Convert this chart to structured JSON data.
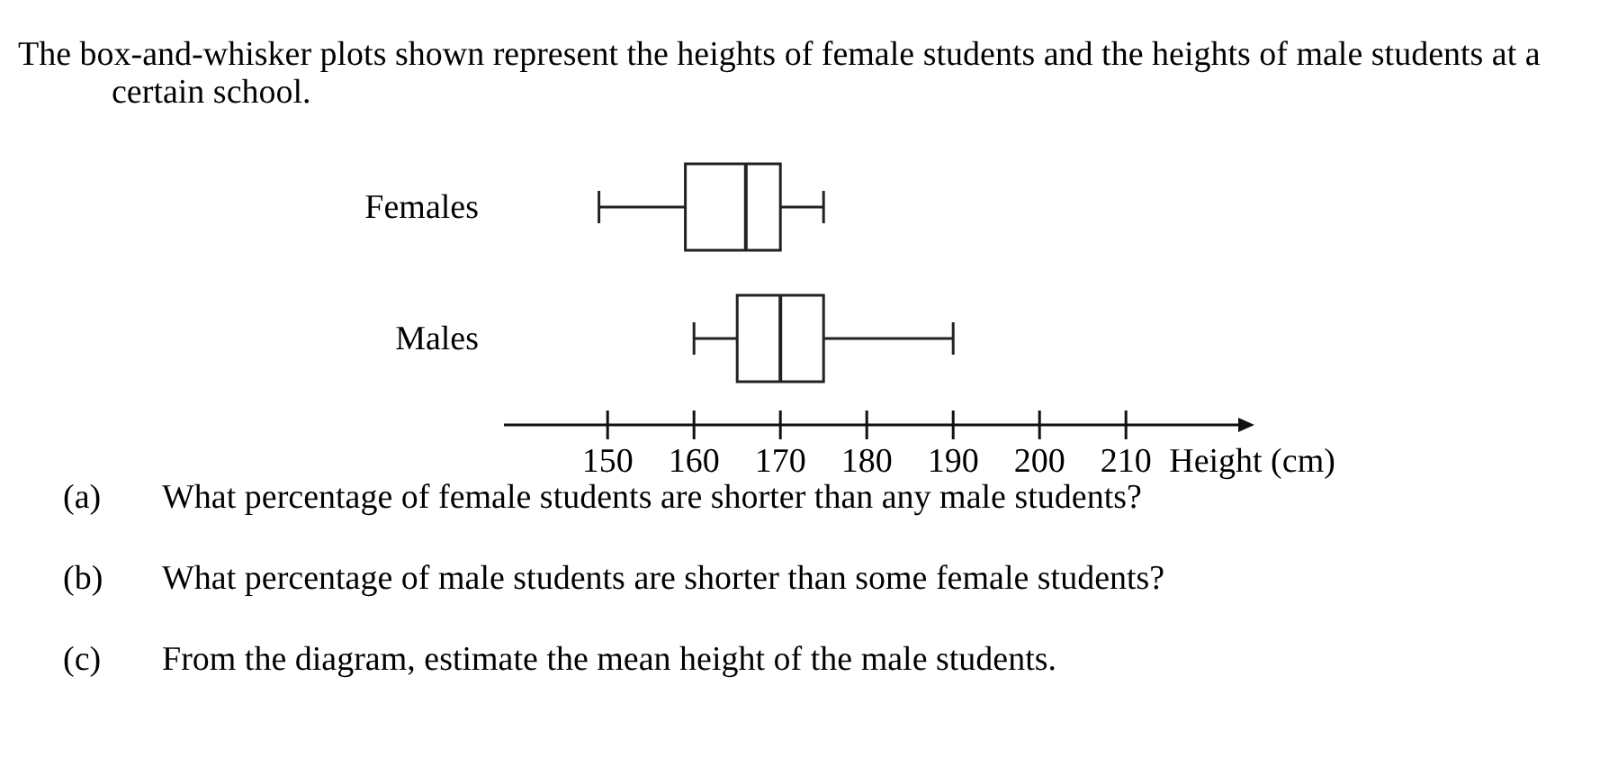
{
  "chart_data": {
    "type": "box",
    "orientation": "horizontal",
    "title": "The box-and-whisker plots shown represent the heights of female students and the heights of male students at a certain school.",
    "categories": [
      "Females",
      "Males"
    ],
    "boxes": [
      {
        "low": 149,
        "q1": 159,
        "median": 166,
        "q3": 170,
        "high": 175
      },
      {
        "low": 160,
        "q1": 165,
        "median": 170,
        "q3": 175,
        "high": 190
      }
    ],
    "xlim": [
      138,
      223
    ],
    "xticks": [
      150,
      160,
      170,
      180,
      190,
      200,
      210
    ],
    "xlabel": "Height (cm)",
    "annotations": [
      "(a)\tWhat percentage of female students are shorter than any male students?",
      "(b)\tWhat percentage of male students are shorter than some female students?",
      "(c)\tFrom the diagram, estimate the mean height of the male students."
    ]
  }
}
